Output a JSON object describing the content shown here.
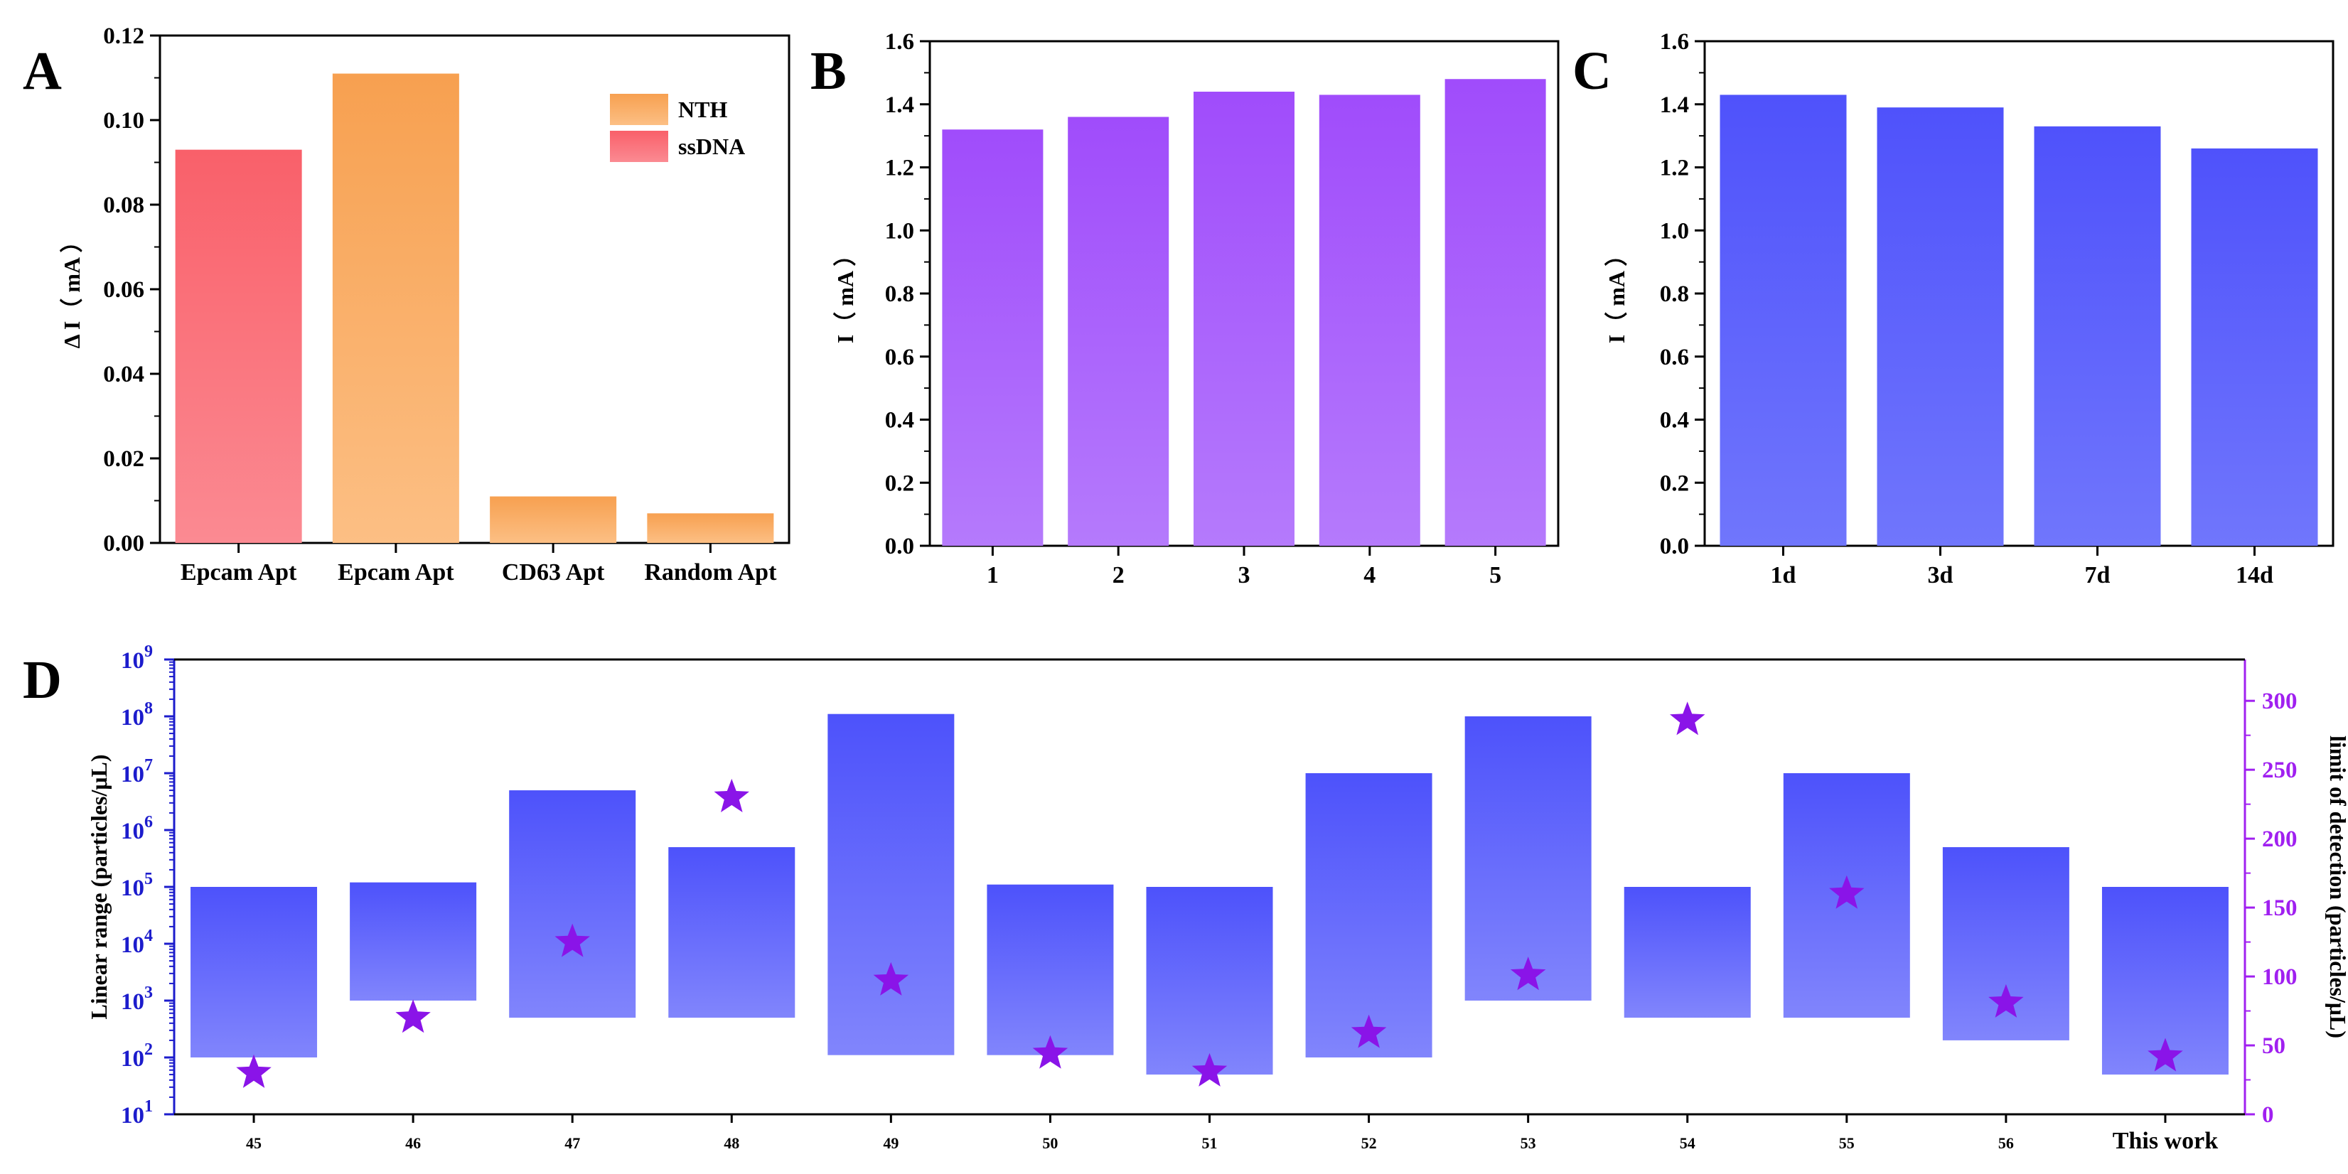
{
  "figure": {
    "panels": [
      "A",
      "B",
      "C",
      "D"
    ]
  },
  "chart_data": [
    {
      "panel": "A",
      "type": "bar",
      "title": "",
      "xlabel": "",
      "ylabel": "Δ I（ mA ）",
      "categories": [
        "Epcam Apt",
        "Epcam Apt",
        "CD63 Apt",
        "Random Apt"
      ],
      "series": [
        {
          "name": "NTH",
          "values": [
            null,
            0.111,
            0.011,
            0.007
          ],
          "color_top": "#f7a050",
          "color_bottom": "#fcbf84"
        },
        {
          "name": "ssDNA",
          "values": [
            0.093,
            null,
            null,
            null
          ],
          "color_top": "#f9606a",
          "color_bottom": "#fb8a92"
        }
      ],
      "ylim": [
        0,
        0.12
      ],
      "yticks": [
        "0.00",
        "0.02",
        "0.04",
        "0.06",
        "0.08",
        "0.10",
        "0.12"
      ],
      "legend": "top-right",
      "grid": false
    },
    {
      "panel": "B",
      "type": "bar",
      "title": "",
      "xlabel": "",
      "ylabel": "I（ mA ）",
      "categories": [
        "1",
        "2",
        "3",
        "4",
        "5"
      ],
      "values": [
        1.32,
        1.36,
        1.44,
        1.43,
        1.48
      ],
      "color_top": "#a04cfb",
      "color_bottom": "#b57afc",
      "ylim": [
        0,
        1.6
      ],
      "yticks": [
        "0.0",
        "0.2",
        "0.4",
        "0.6",
        "0.8",
        "1.0",
        "1.2",
        "1.4",
        "1.6"
      ],
      "grid": false
    },
    {
      "panel": "C",
      "type": "bar",
      "title": "",
      "xlabel": "",
      "ylabel": "I（ mA ）",
      "categories": [
        "1d",
        "3d",
        "7d",
        "14d"
      ],
      "values": [
        1.43,
        1.39,
        1.33,
        1.26
      ],
      "color_top": "#4f52fb",
      "color_bottom": "#7076fc",
      "ylim": [
        0,
        1.6
      ],
      "yticks": [
        "0.0",
        "0.2",
        "0.4",
        "0.6",
        "0.8",
        "1.0",
        "1.2",
        "1.4",
        "1.6"
      ],
      "grid": false
    },
    {
      "panel": "D",
      "type": "bar",
      "title": "",
      "xlabel": "",
      "ylabel": "Linear range (particles/μL)",
      "y2label": "limit of detection (particles/μL)",
      "categories": [
        "45",
        "46",
        "47",
        "48",
        "49",
        "50",
        "51",
        "52",
        "53",
        "54",
        "55",
        "56",
        "This work"
      ],
      "linear_range_low": [
        100,
        1000,
        500,
        500,
        110,
        110,
        50,
        100,
        1000,
        500,
        500,
        200,
        50
      ],
      "linear_range_high": [
        100000,
        120000,
        5000000,
        500000,
        110000000,
        110000,
        100000,
        10000000,
        100000000,
        100000,
        10000000,
        500000,
        100000
      ],
      "limit_of_detection": [
        30,
        70,
        125,
        230,
        97,
        44,
        31,
        59,
        101,
        286,
        160,
        81,
        42
      ],
      "ylim_log": [
        10,
        1000000000
      ],
      "y_scale": "log",
      "yticks_exp": [
        "1",
        "2",
        "3",
        "4",
        "5",
        "6",
        "7",
        "8",
        "9"
      ],
      "y2lim": [
        0,
        330
      ],
      "y2ticks": [
        "0",
        "50",
        "100",
        "150",
        "200",
        "250",
        "300"
      ],
      "bar_color_top": "#4d52fb",
      "bar_color_bottom": "#8185fc",
      "left_axis_color": "#1c1ccc",
      "right_axis_color": "#a020f0",
      "star_color": "#8a14e8",
      "grid": false
    }
  ]
}
